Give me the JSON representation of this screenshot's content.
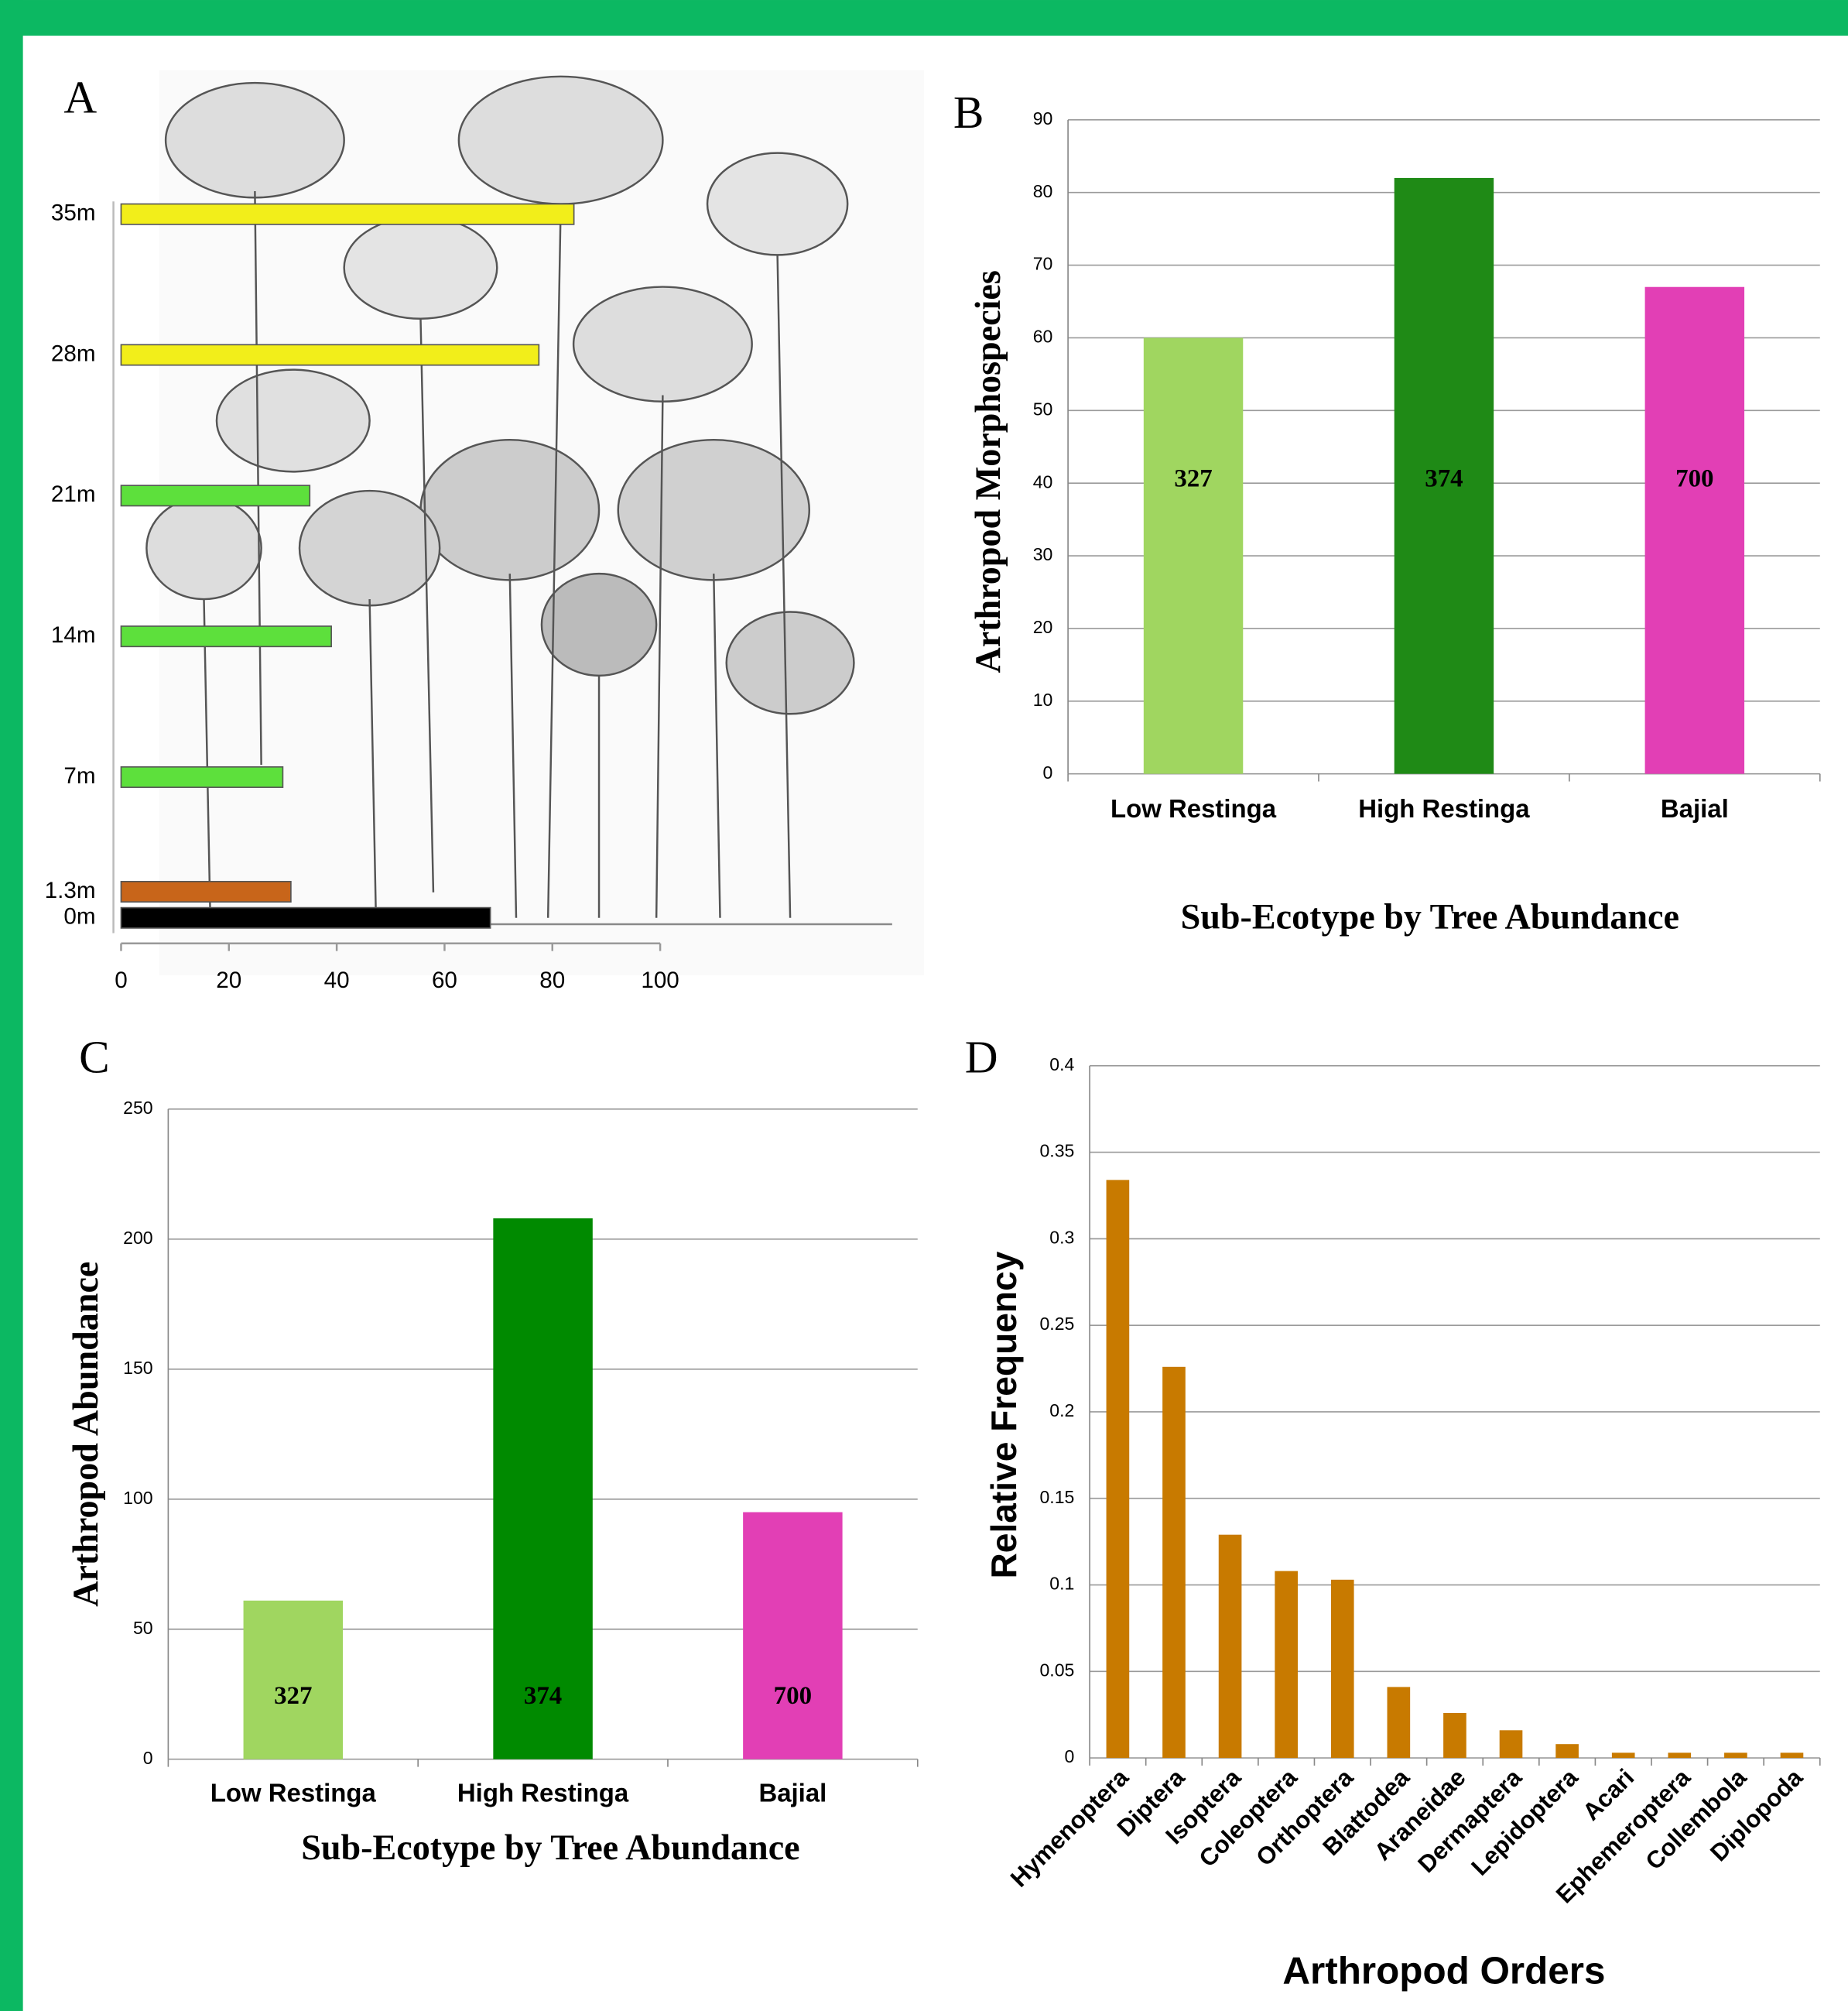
{
  "chart_data": [
    {
      "type": "hbar",
      "panel_label": "A",
      "values": [
        84,
        77.5,
        35,
        39,
        30,
        31.5,
        68.5
      ],
      "colors": [
        "#f2ee1a",
        "#f2ee1a",
        "#5de03c",
        "#5de03c",
        "#5de03c",
        "#c8651a",
        "#000000"
      ],
      "xlim": [
        0,
        100
      ],
      "xticks": [
        0,
        20,
        40,
        60,
        80,
        100
      ],
      "ylim": [
        0,
        42
      ],
      "yticks": [
        {
          "value": 35,
          "label": "35m"
        },
        {
          "value": 28,
          "label": "28m"
        },
        {
          "value": 21,
          "label": "21m"
        },
        {
          "value": 14,
          "label": "14m"
        },
        {
          "value": 7,
          "label": "7m"
        },
        {
          "value": 1.3,
          "label": "1.3m"
        },
        {
          "value": 0,
          "label": "0m"
        }
      ]
    },
    {
      "type": "bar",
      "panel_label": "B",
      "categories": [
        "Low Restinga",
        "High Restinga",
        "Bajial"
      ],
      "values": [
        60,
        82,
        67
      ],
      "annotations": [
        "327",
        "374",
        "700"
      ],
      "colors": [
        "#a0d660",
        "#1f8a16",
        "#e23fb5"
      ],
      "ylim": [
        0,
        90
      ],
      "yticks": [
        0,
        10,
        20,
        30,
        40,
        50,
        60,
        70,
        80,
        90
      ],
      "grid": true,
      "y_label": "Arthropod Morphospecies",
      "x_label": "Sub-Ecotype by Tree Abundance"
    },
    {
      "type": "bar",
      "panel_label": "C",
      "categories": [
        "Low Restinga",
        "High Restinga",
        "Bajial"
      ],
      "values": [
        61,
        208,
        95
      ],
      "annotations": [
        "327",
        "374",
        "700"
      ],
      "colors": [
        "#a0d660",
        "#008a00",
        "#e23fb5"
      ],
      "ylim": [
        0,
        250
      ],
      "yticks": [
        0,
        50,
        100,
        150,
        200,
        250
      ],
      "grid": true,
      "y_label": "Arthropod Abundance",
      "x_label": "Sub-Ecotype by Tree Abundance"
    },
    {
      "type": "bar",
      "panel_label": "D",
      "categories": [
        "Hymenoptera",
        "Diptera",
        "Isoptera",
        "Coleoptera",
        "Orthoptera",
        "Blattodea",
        "Araneidae",
        "Dermaptera",
        "Lepidoptera",
        "Acari",
        "Ephemeroptera",
        "Collembola",
        "Diplopoda"
      ],
      "values": [
        0.334,
        0.226,
        0.129,
        0.108,
        0.103,
        0.041,
        0.026,
        0.016,
        0.008,
        0.003,
        0.003,
        0.003,
        0.003
      ],
      "color": "#c87a00",
      "ylim": [
        0,
        0.4
      ],
      "yticks": [
        0,
        0.05,
        0.1,
        0.15,
        0.2,
        0.25,
        0.3,
        0.35,
        0.4
      ],
      "grid": true,
      "y_label": "Relative Frequency",
      "x_label": "Arthropod Orders"
    }
  ]
}
